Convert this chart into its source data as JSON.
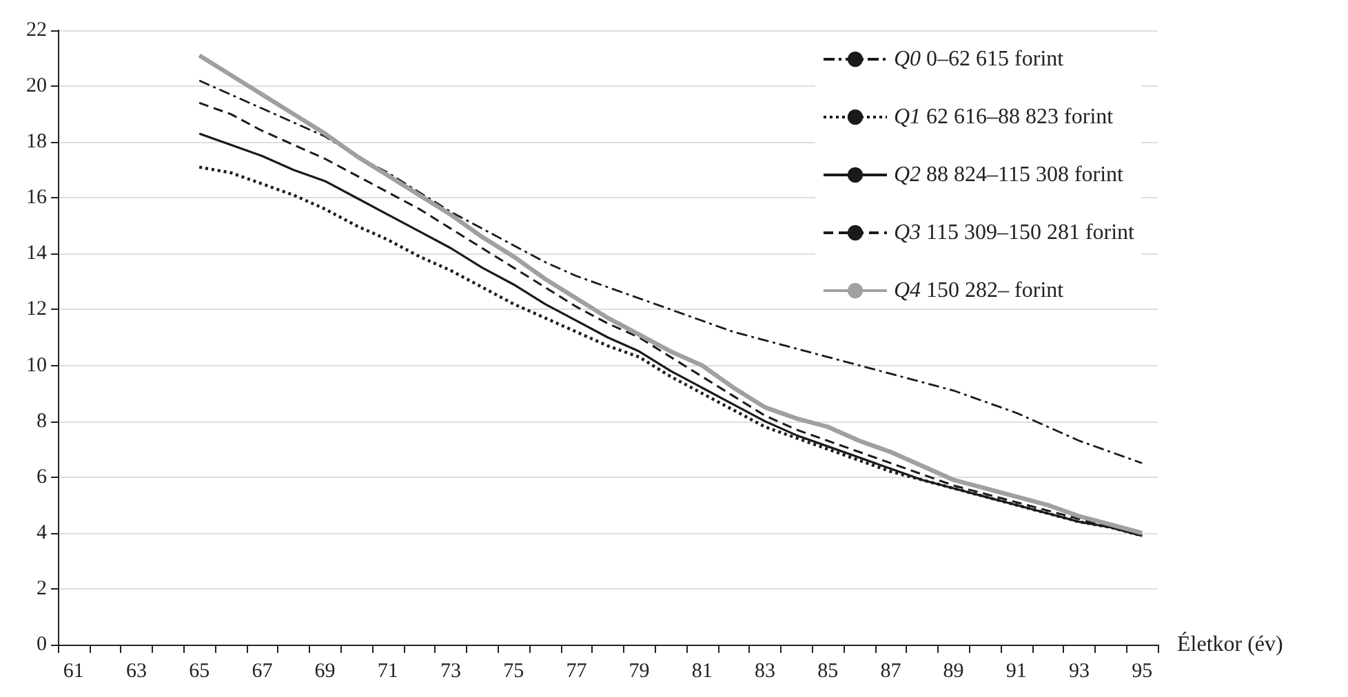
{
  "chart_data": {
    "type": "line",
    "xlabel": "Életkor (év)",
    "categories": [
      "61",
      null,
      "63",
      null,
      "65",
      null,
      "67",
      null,
      "69",
      null,
      "71",
      null,
      "73",
      null,
      "75",
      null,
      "77",
      null,
      "79",
      null,
      "81",
      null,
      "83",
      null,
      "85",
      null,
      "87",
      null,
      "89",
      null,
      "91",
      null,
      "93",
      null,
      "95"
    ],
    "series": [
      {
        "name": "Q0 0–62 615 forint",
        "color": "#1a1a1a",
        "line_style": "dashdot",
        "values": [
          null,
          null,
          null,
          null,
          20.2,
          19.7,
          19.2,
          18.7,
          18.2,
          17.5,
          16.9,
          16.2,
          15.5,
          14.9,
          14.3,
          13.7,
          13.2,
          12.8,
          12.4,
          12.0,
          11.6,
          11.2,
          10.9,
          10.6,
          10.3,
          10.0,
          9.7,
          9.4,
          9.1,
          8.7,
          8.3,
          7.8,
          7.3,
          6.9,
          6.5
        ]
      },
      {
        "name": "Q1 62 616–88 823 forint",
        "color": "#1a1a1a",
        "line_style": "dotted",
        "values": [
          null,
          null,
          null,
          null,
          17.1,
          16.9,
          16.5,
          16.1,
          15.6,
          15.0,
          14.5,
          13.9,
          13.4,
          12.8,
          12.2,
          11.7,
          11.2,
          10.7,
          10.3,
          9.6,
          9.0,
          8.4,
          7.8,
          7.4,
          7.0,
          6.6,
          6.2,
          5.9,
          5.6,
          5.3,
          5.0,
          4.7,
          4.4,
          4.2,
          3.9
        ]
      },
      {
        "name": "Q2 88 824–115 308 forint",
        "color": "#1a1a1a",
        "line_style": "solid",
        "values": [
          null,
          null,
          null,
          null,
          18.3,
          17.9,
          17.5,
          17.0,
          16.6,
          16.0,
          15.4,
          14.8,
          14.2,
          13.5,
          12.9,
          12.2,
          11.6,
          11.0,
          10.5,
          9.8,
          9.2,
          8.6,
          8.0,
          7.5,
          7.1,
          6.7,
          6.3,
          5.9,
          5.6,
          5.3,
          5.0,
          4.7,
          4.4,
          4.2,
          3.9
        ]
      },
      {
        "name": "Q3 115 309–150 281 forint",
        "color": "#1a1a1a",
        "line_style": "dashed",
        "values": [
          null,
          null,
          null,
          null,
          19.4,
          19.0,
          18.4,
          17.9,
          17.4,
          16.8,
          16.2,
          15.6,
          14.9,
          14.2,
          13.5,
          12.8,
          12.1,
          11.5,
          11.0,
          10.3,
          9.6,
          8.9,
          8.2,
          7.7,
          7.3,
          6.9,
          6.5,
          6.1,
          5.7,
          5.4,
          5.1,
          4.8,
          4.5,
          4.2,
          3.9
        ]
      },
      {
        "name": "Q4 150 282– forint",
        "color": "#a0a0a0",
        "line_style": "solid",
        "values": [
          null,
          null,
          null,
          null,
          21.1,
          20.4,
          19.7,
          19.0,
          18.3,
          17.5,
          16.8,
          16.1,
          15.4,
          14.6,
          13.9,
          13.1,
          12.4,
          11.7,
          11.1,
          10.5,
          10.0,
          9.2,
          8.5,
          8.1,
          7.8,
          7.3,
          6.9,
          6.4,
          5.9,
          5.6,
          5.3,
          5.0,
          4.6,
          4.3,
          4.0
        ]
      }
    ],
    "ylim": [
      0,
      22
    ],
    "yticks": [
      0,
      2,
      4,
      6,
      8,
      10,
      12,
      14,
      16,
      18,
      20,
      22
    ],
    "grid": "y",
    "legend": "top right",
    "marker": "none"
  }
}
